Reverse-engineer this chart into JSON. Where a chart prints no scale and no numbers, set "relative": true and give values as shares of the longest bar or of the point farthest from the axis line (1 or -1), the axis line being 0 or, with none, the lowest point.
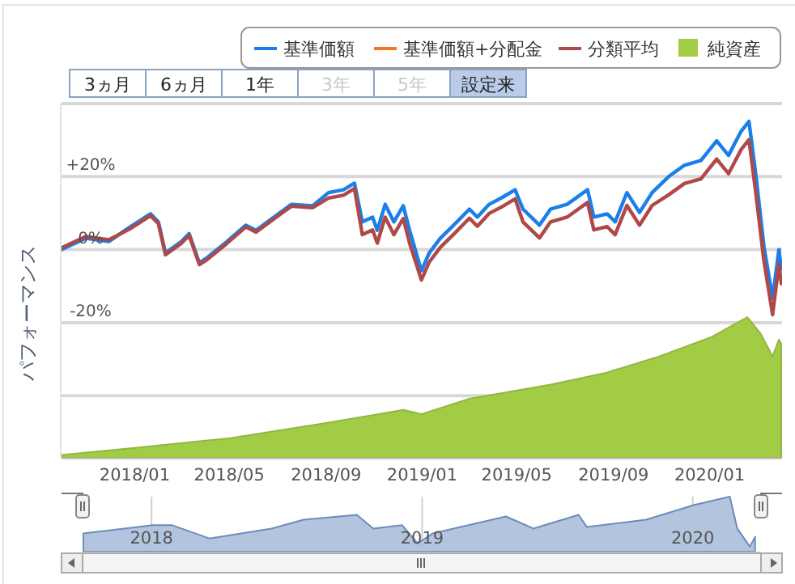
{
  "chart_data": [
    {
      "type": "line",
      "ylabel": "パフォーマンス",
      "annotations": [
        "3ヵ月",
        "6ヵ月",
        "1年",
        "3年",
        "5年",
        "設定来"
      ],
      "x": [
        "2017-09-30",
        "2017-10-31",
        "2017-11-29",
        "2017-12-26",
        "2018-01-21",
        "2018-01-31",
        "2018-02-09",
        "2018-03-01",
        "2018-03-11",
        "2018-03-24",
        "2018-04-03",
        "2018-04-28",
        "2018-05-22",
        "2018-06-04",
        "2018-07-05",
        "2018-07-19",
        "2018-08-15",
        "2018-09-04",
        "2018-09-23",
        "2018-10-07",
        "2018-10-17",
        "2018-10-30",
        "2018-11-05",
        "2018-11-15",
        "2018-11-26",
        "2018-12-08",
        "2018-12-16",
        "2018-12-31",
        "2019-01-10",
        "2019-01-24",
        "2019-02-10",
        "2019-03-02",
        "2019-03-12",
        "2019-03-27",
        "2019-04-12",
        "2019-04-29",
        "2019-05-09",
        "2019-05-30",
        "2019-06-13",
        "2019-07-04",
        "2019-07-30",
        "2019-08-07",
        "2019-08-24",
        "2019-09-03",
        "2019-09-18",
        "2019-10-04",
        "2019-10-20",
        "2019-11-10",
        "2019-11-30",
        "2019-12-21",
        "2020-01-10",
        "2020-01-25",
        "2020-02-10",
        "2020-02-20",
        "2020-02-29",
        "2020-03-10",
        "2020-03-21",
        "2020-03-29",
        "2020-04-01"
      ],
      "xlim": [
        "2017-09-30",
        "2020-04-02"
      ],
      "ylim": [
        -57,
        40
      ],
      "yticks": [
        {
          "value": 40,
          "label": null
        },
        {
          "value": 20,
          "label": "+20%"
        },
        {
          "value": 0,
          "label": "0%"
        },
        {
          "value": -20,
          "label": "-20%"
        },
        {
          "value": -40,
          "label": null
        }
      ],
      "grid": "y",
      "legend": "top right",
      "tick_labels": "y",
      "series": [
        {
          "name": "基準価額",
          "color": "#1a7fe8",
          "values": [
            0,
            3.1,
            2.2,
            6.2,
            9.8,
            7.6,
            -0.9,
            2.2,
            4.4,
            -3.6,
            -2.2,
            2.2,
            6.7,
            5.3,
            10.2,
            12.4,
            12,
            15.6,
            16.4,
            18.2,
            7.6,
            8.9,
            5.3,
            12.4,
            7.6,
            12,
            5.3,
            -5.8,
            -0.9,
            3.1,
            6.7,
            11.1,
            8.9,
            12.4,
            14.2,
            16.4,
            11.1,
            6.7,
            11.1,
            12.4,
            16.4,
            8.9,
            9.8,
            7.6,
            15.6,
            10.2,
            15.6,
            20,
            23.1,
            24.4,
            29.8,
            25.8,
            32.4,
            35.1,
            20,
            0.9,
            -13.3,
            0,
            -5.3
          ]
        },
        {
          "name": "基準価額+分配金",
          "color": "#f4761f",
          "values": [
            null,
            null,
            null,
            null,
            null,
            null,
            null,
            null,
            null,
            null,
            null,
            null,
            null,
            null,
            null,
            null,
            null,
            null,
            null,
            null,
            null,
            null,
            null,
            null,
            null,
            null,
            null,
            null,
            null,
            null,
            null,
            null,
            null,
            null,
            null,
            null,
            null,
            null,
            null,
            null,
            null,
            null,
            null,
            null,
            null,
            null,
            null,
            null,
            null,
            null,
            null,
            null,
            null,
            null,
            null,
            null,
            null,
            null,
            null
          ]
        },
        {
          "name": "分類平均",
          "color": "#b04848",
          "values": [
            0.5,
            3.6,
            2.7,
            5.7,
            9.3,
            7.1,
            -1.4,
            1.7,
            3.9,
            -4.1,
            -2.7,
            1.7,
            6.2,
            4.8,
            9.7,
            11.9,
            11.5,
            14.1,
            14.9,
            16.7,
            4.1,
            5.4,
            1.8,
            8.9,
            4.1,
            8.5,
            1.8,
            -8.3,
            -3.4,
            0.6,
            4.2,
            8.6,
            6.4,
            9.9,
            11.7,
            13.9,
            7.6,
            3.2,
            7.6,
            8.9,
            12.9,
            5.4,
            6.3,
            4.1,
            12.1,
            6.7,
            12.1,
            15,
            18.1,
            19.4,
            24.8,
            20.8,
            27.4,
            30.1,
            15,
            -3.1,
            -17.8,
            -4,
            -9.3
          ]
        }
      ]
    },
    {
      "type": "area",
      "relative": true,
      "legend": "top right",
      "tick_labels": "x",
      "x": [
        "2017-09-30",
        "2018-01-01",
        "2018-05-02",
        "2018-09-04",
        "2018-12-08",
        "2018-12-31",
        "2019-03-02",
        "2019-05-03",
        "2019-06-13",
        "2019-08-20",
        "2019-10-29",
        "2020-01-04",
        "2020-02-18",
        "2020-03-06",
        "2020-03-21",
        "2020-03-29",
        "2020-04-01"
      ],
      "xlim": [
        "2017-09-30",
        "2020-04-02"
      ],
      "xticks": [
        {
          "value": "2018-01-01",
          "label": "2018/01"
        },
        {
          "value": "2018-05-01",
          "label": "2018/05"
        },
        {
          "value": "2018-09-01",
          "label": "2018/09"
        },
        {
          "value": "2019-01-01",
          "label": "2019/01"
        },
        {
          "value": "2019-05-01",
          "label": "2019/05"
        },
        {
          "value": "2019-09-01",
          "label": "2019/09"
        },
        {
          "value": "2020-01-01",
          "label": "2020/01"
        }
      ],
      "series": [
        {
          "name": "純資産",
          "color": "#a2cc45",
          "values": [
            0.02,
            0.07,
            0.14,
            0.25,
            0.34,
            0.31,
            0.42,
            0.48,
            0.52,
            0.6,
            0.72,
            0.86,
            1,
            0.88,
            0.72,
            0.84,
            0.81
          ]
        }
      ]
    },
    {
      "type": "area",
      "relative": true,
      "tick_labels": "x",
      "grid": "x",
      "x": [
        "2017-10-01",
        "2018-01-03",
        "2018-01-29",
        "2018-03-20",
        "2018-06-12",
        "2018-07-25",
        "2018-10-05",
        "2018-10-27",
        "2018-12-05",
        "2018-12-26",
        "2019-01-15",
        "2019-04-24",
        "2019-05-31",
        "2019-07-31",
        "2019-08-11",
        "2019-10-30",
        "2020-01-03",
        "2020-02-20",
        "2020-03-01",
        "2020-03-18",
        "2020-03-25"
      ],
      "xlim": [
        "2017-09-30",
        "2020-04-02"
      ],
      "xticks": [
        {
          "value": "2018-01-01",
          "label": "2018"
        },
        {
          "value": "2019-01-01",
          "label": "2019"
        },
        {
          "value": "2020-01-01",
          "label": "2020"
        }
      ],
      "series": [
        {
          "color": "#6c8bbd",
          "values": [
            0.33,
            0.48,
            0.48,
            0.24,
            0.42,
            0.58,
            0.67,
            0.42,
            0.48,
            0.15,
            0.33,
            0.64,
            0.42,
            0.67,
            0.45,
            0.58,
            0.85,
            1,
            0.42,
            0.09,
            0.27
          ]
        }
      ]
    }
  ]
}
